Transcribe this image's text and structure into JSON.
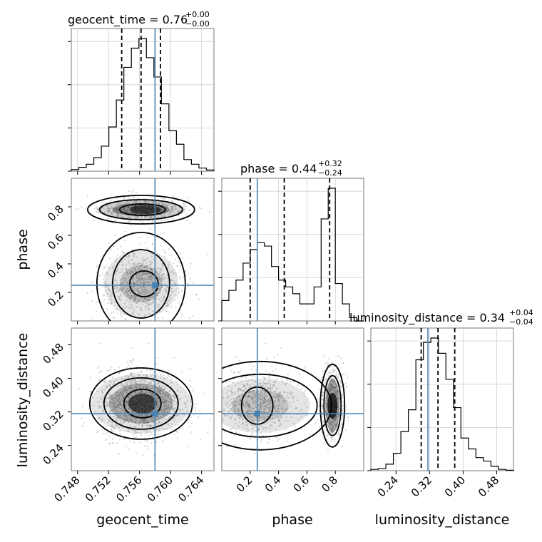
{
  "chart_data": {
    "type": "corner",
    "parameters": [
      "geocent_time",
      "phase",
      "luminosity_distance"
    ],
    "truths": {
      "geocent_time": 0.758,
      "phase": 0.25,
      "luminosity_distance": 0.316
    },
    "titles": [
      {
        "param": "geocent_time",
        "median": "0.76",
        "plus": "+0.00",
        "minus": "−0.00"
      },
      {
        "param": "phase",
        "median": "0.44",
        "plus": "+0.32",
        "minus": "−0.24"
      },
      {
        "param": "luminosity_distance",
        "median": "0.34",
        "plus": "+0.04",
        "minus": "−0.04"
      }
    ],
    "axes": {
      "geocent_time": {
        "range": [
          0.7472,
          0.7656
        ],
        "ticks": [
          "0.748",
          "0.752",
          "0.756",
          "0.760",
          "0.764"
        ]
      },
      "phase": {
        "range": [
          0.0,
          1.0
        ],
        "ticks": [
          "0.2",
          "0.4",
          "0.6",
          "0.8"
        ]
      },
      "luminosity_distance": {
        "range": [
          0.18,
          0.52
        ],
        "ticks": [
          "0.24",
          "0.32",
          "0.40",
          "0.48"
        ]
      }
    },
    "histograms": {
      "geocent_time": {
        "counts": [
          0.4,
          1.0,
          1.8,
          3.5,
          6.5,
          11.5,
          18.5,
          27,
          32,
          34.5,
          29.5,
          24.5,
          17.5,
          10.5,
          7,
          3,
          1.8,
          0.8,
          0.3
        ],
        "quantiles": [
          0.7537,
          0.7562,
          0.7587
        ]
      },
      "phase": {
        "counts": [
          6,
          9,
          12,
          17,
          21,
          23,
          22,
          16,
          12,
          10,
          8,
          5,
          5,
          10,
          30,
          39,
          11,
          5,
          1,
          0
        ],
        "quantiles": [
          0.2,
          0.44,
          0.76
        ]
      },
      "luminosity_distance": {
        "counts": [
          0.3,
          0.5,
          1.5,
          4,
          9,
          14,
          25.5,
          29.5,
          30.5,
          27,
          21,
          14.5,
          7.5,
          5,
          3,
          2.2,
          1,
          0.3,
          0.1
        ],
        "quantiles": [
          0.3,
          0.34,
          0.38
        ]
      }
    },
    "grid": true
  }
}
